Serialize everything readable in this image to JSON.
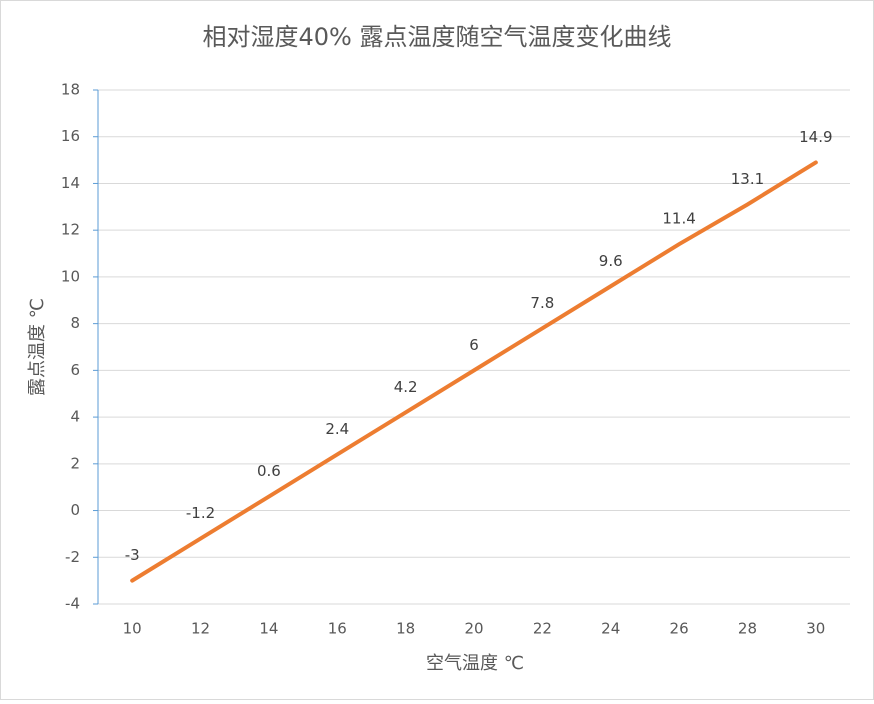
{
  "chart_data": {
    "type": "line",
    "title": "相对湿度40% 露点温度随空气温度变化曲线",
    "x_label": "空气温度 ℃",
    "y_label": "露点温度 ℃",
    "x": [
      10,
      12,
      14,
      16,
      18,
      20,
      22,
      24,
      26,
      28,
      30
    ],
    "xlim": [
      9,
      31
    ],
    "xticks": [
      10,
      12,
      14,
      16,
      18,
      20,
      22,
      24,
      26,
      28,
      30
    ],
    "ylim": [
      -4,
      18
    ],
    "yticks": [
      -4,
      -2,
      0,
      2,
      4,
      6,
      8,
      10,
      12,
      14,
      16,
      18
    ],
    "grid": true,
    "series": [
      {
        "name": "露点温度",
        "color": "#ed7d31",
        "values": [
          -3,
          -1.2,
          0.6,
          2.4,
          4.2,
          6,
          7.8,
          9.6,
          11.4,
          13.1,
          14.9
        ]
      }
    ]
  }
}
